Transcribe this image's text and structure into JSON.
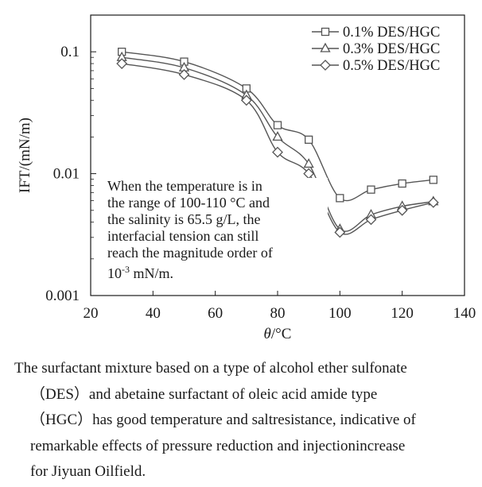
{
  "chart_data": {
    "type": "line",
    "title": "",
    "xlabel": "θ/°C",
    "ylabel": "IFT/(mN/m)",
    "xlim": [
      20,
      140
    ],
    "ylim": [
      0.001,
      0.2
    ],
    "yscale": "log",
    "x_ticks": [
      "20",
      "40",
      "60",
      "80",
      "100",
      "120",
      "140"
    ],
    "y_ticks": [
      "0.001",
      "0.01",
      "0.1"
    ],
    "grid": false,
    "legend_position": "top-right",
    "series": [
      {
        "name": "0.1% DES/HGC",
        "marker": "square",
        "x": [
          30,
          50,
          70,
          80,
          90,
          100,
          110,
          120,
          130
        ],
        "y": [
          0.1,
          0.083,
          0.05,
          0.025,
          0.019,
          0.0063,
          0.0074,
          0.0083,
          0.0089
        ]
      },
      {
        "name": "0.3% DES/HGC",
        "marker": "triangle",
        "x": [
          30,
          50,
          70,
          80,
          90,
          100,
          110,
          120,
          130
        ],
        "y": [
          0.09,
          0.074,
          0.044,
          0.02,
          0.012,
          0.0035,
          0.0046,
          0.0054,
          0.0059
        ]
      },
      {
        "name": "0.5% DES/HGC",
        "marker": "diamond",
        "x": [
          30,
          50,
          70,
          80,
          90,
          100,
          110,
          120,
          130
        ],
        "y": [
          0.08,
          0.065,
          0.04,
          0.015,
          0.01,
          0.0033,
          0.0042,
          0.005,
          0.0058
        ]
      }
    ],
    "annotation": [
      "When the temperature is in",
      "the range of 100-110 °C and",
      "the salinity is 65.5 g/L, the",
      "interfacial tension can still",
      "reach the magnitude order of",
      "10-3 mN/m."
    ]
  },
  "caption": {
    "lines": [
      "The surfactant mixture based on a type of alcohol ether sulfonate",
      "（DES）and abetaine surfactant of oleic acid amide type",
      "（HGC）has good temperature and saltresistance, indicative of",
      "remarkable effects of pressure reduction and injectionincrease",
      "for Jiyuan Oilfield."
    ]
  },
  "colors": {
    "series_line": "#555555",
    "axis": "#1a1a1a"
  }
}
